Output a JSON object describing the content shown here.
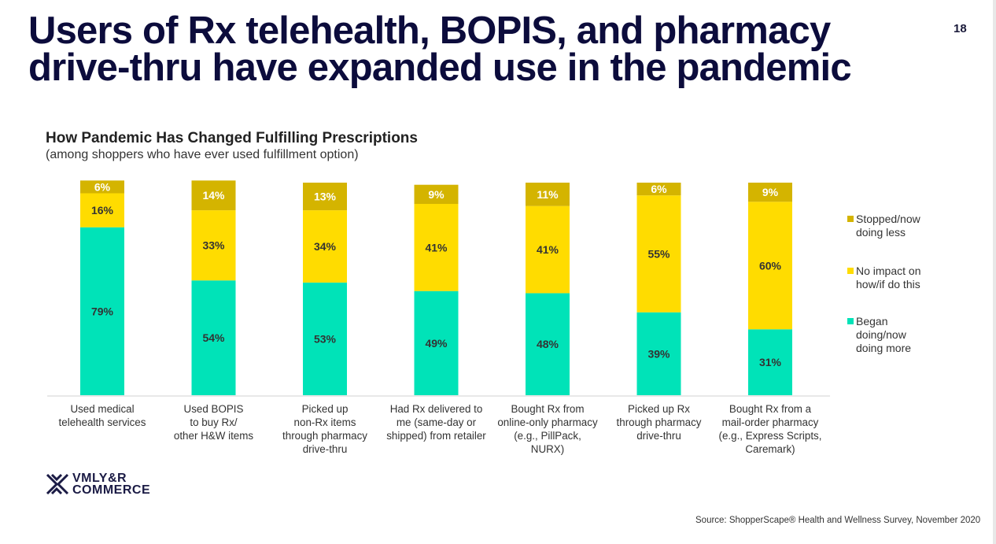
{
  "header": {
    "title_line1": "Users of Rx telehealth, BOPIS, and pharmacy",
    "title_line2": "drive-thru have expanded use in the pandemic",
    "slide_number": "18"
  },
  "footer": {
    "logo_line1": "VMLY&R",
    "logo_line2": "COMMERCE",
    "source": "Source: ShopperScape® Health and Wellness Survey, November 2020"
  },
  "chart_data": {
    "type": "bar",
    "stacked": true,
    "title": "How Pandemic Has Changed Fulfilling Prescriptions",
    "subtitle": "(among shoppers who have ever used fulfillment option)",
    "xlabel": "",
    "ylabel": "",
    "ylim": [
      0,
      100
    ],
    "grid": false,
    "legend_position": "right",
    "categories": [
      [
        "Used medical",
        "telehealth services"
      ],
      [
        "Used BOPIS",
        "to buy Rx/",
        "other H&W items"
      ],
      [
        "Picked up",
        "non-Rx items",
        "through pharmacy",
        "drive-thru"
      ],
      [
        "Had Rx delivered to",
        "me (same-day or",
        "shipped) from retailer"
      ],
      [
        "Bought Rx from",
        "online-only pharmacy",
        "(e.g., PillPack,",
        "NURX)"
      ],
      [
        "Picked up Rx",
        "through pharmacy",
        "drive-thru"
      ],
      [
        "Bought Rx from a",
        "mail-order pharmacy",
        "(e.g., Express Scripts,",
        "Caremark)"
      ]
    ],
    "series": [
      {
        "name": "Began doing/now doing more",
        "legend_lines": [
          "Began",
          "doing/now",
          "doing more"
        ],
        "color": "#00e3b8",
        "values": [
          79,
          54,
          53,
          49,
          48,
          39,
          31
        ],
        "labels": [
          "79%",
          "54%",
          "53%",
          "49%",
          "48%",
          "39%",
          "31%"
        ]
      },
      {
        "name": "No impact on how/if do this",
        "legend_lines": [
          "No impact on",
          "how/if do this"
        ],
        "color": "#ffdc00",
        "values": [
          16,
          33,
          34,
          41,
          41,
          55,
          60
        ],
        "labels": [
          "16%",
          "33%",
          "34%",
          "41%",
          "41%",
          "55%",
          "60%"
        ]
      },
      {
        "name": "Stopped/now doing less",
        "legend_lines": [
          "Stopped/now",
          "doing less"
        ],
        "color": "#d4b400",
        "values": [
          6,
          14,
          13,
          9,
          11,
          6,
          9
        ],
        "labels": [
          "6%",
          "14%",
          "13%",
          "9%",
          "11%",
          "6%",
          "9%"
        ]
      }
    ]
  }
}
